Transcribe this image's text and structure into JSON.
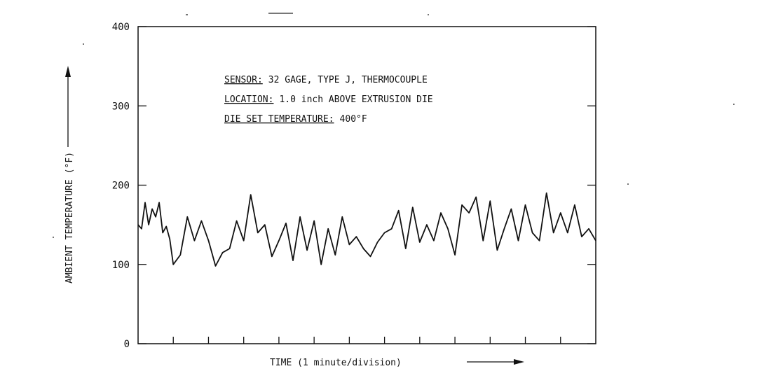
{
  "chart_data": {
    "type": "line",
    "title": "",
    "xlabel": "TIME (1 minute/division)",
    "ylabel": "AMBIENT TEMPERATURE",
    "ylabel_unit": "(°F)",
    "ylim": [
      0,
      400
    ],
    "yticks": [
      "0",
      "100",
      "200",
      "300",
      "400"
    ],
    "xlim": [
      0,
      13
    ],
    "x_divisions": 13,
    "grid": false,
    "annotations": {
      "sensor_key": "SENSOR:",
      "sensor_value": "32 GAGE, TYPE J, THERMOCOUPLE",
      "location_key": "LOCATION:",
      "location_value": "1.0 inch ABOVE EXTRUSION DIE",
      "dieset_key": "DIE SET TEMPERATURE:",
      "dieset_value": "400°F"
    },
    "series": [
      {
        "x": [
          0,
          0.1,
          0.2,
          0.3,
          0.4,
          0.5,
          0.6,
          0.7,
          0.8,
          0.9,
          1.0,
          1.2,
          1.4,
          1.6,
          1.8,
          2.0,
          2.2,
          2.4,
          2.6,
          2.8,
          3.0,
          3.2,
          3.4,
          3.6,
          3.8,
          4.0,
          4.2,
          4.4,
          4.6,
          4.8,
          5.0,
          5.2,
          5.4,
          5.6,
          5.8,
          6.0,
          6.2,
          6.4,
          6.6,
          6.8,
          7.0,
          7.2,
          7.4,
          7.6,
          7.8,
          8.0,
          8.2,
          8.4,
          8.6,
          8.8,
          9.0,
          9.2,
          9.4,
          9.6,
          9.8,
          10.0,
          10.2,
          10.4,
          10.6,
          10.8,
          11.0,
          11.2,
          11.4,
          11.6,
          11.8,
          12.0,
          12.2,
          12.4,
          12.6,
          12.8,
          13.0
        ],
        "y": [
          150,
          145,
          178,
          150,
          170,
          160,
          178,
          140,
          148,
          132,
          100,
          112,
          160,
          130,
          155,
          130,
          98,
          115,
          120,
          155,
          130,
          188,
          140,
          150,
          110,
          130,
          152,
          105,
          160,
          118,
          155,
          100,
          145,
          112,
          160,
          125,
          135,
          120,
          110,
          128,
          140,
          145,
          168,
          120,
          172,
          128,
          150,
          130,
          165,
          145,
          112,
          175,
          165,
          185,
          130,
          180,
          118,
          145,
          170,
          130,
          175,
          140,
          130,
          190,
          140,
          165,
          140,
          175,
          135,
          145,
          130
        ]
      }
    ]
  }
}
